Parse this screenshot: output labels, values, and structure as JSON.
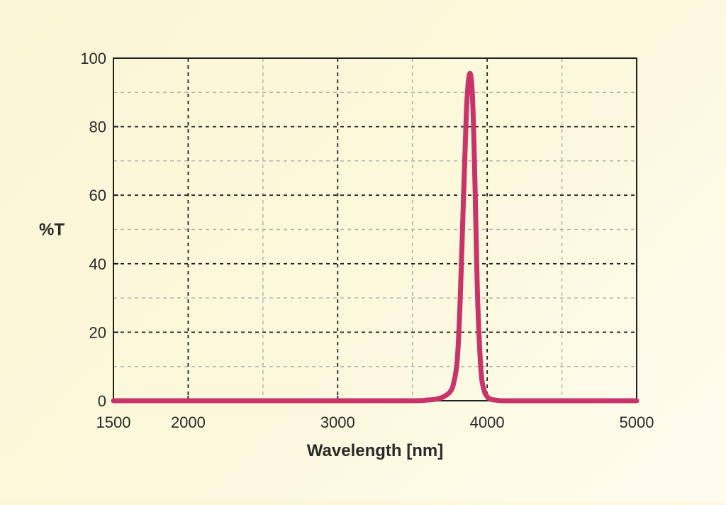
{
  "chart_data": {
    "type": "line",
    "xlabel": "Wavelength [nm]",
    "ylabel": "%T",
    "xlim": [
      1500,
      5000
    ],
    "ylim": [
      0,
      100
    ],
    "x_ticks": [
      1500,
      2000,
      3000,
      4000,
      5000
    ],
    "x_tick_labels": [
      "1500",
      "2000",
      "3000",
      "4000",
      "5000"
    ],
    "x_minor_grid": [
      2500,
      3500,
      4500
    ],
    "y_ticks": [
      0,
      20,
      40,
      60,
      80,
      100
    ],
    "y_tick_labels": [
      "0",
      "20",
      "40",
      "60",
      "80",
      "100"
    ],
    "y_minor_grid": [
      10,
      30,
      50,
      70,
      90
    ],
    "grid": true,
    "series": [
      {
        "color": "#c8336a",
        "x": [
          1500,
          2000,
          2500,
          3000,
          3500,
          3600,
          3650,
          3700,
          3750,
          3775,
          3800,
          3820,
          3840,
          3860,
          3870,
          3880,
          3890,
          3900,
          3910,
          3920,
          3930,
          3940,
          3960,
          3980,
          4000,
          4020,
          4050,
          4100,
          4200,
          4500,
          5000
        ],
        "y": [
          0,
          0,
          0,
          0,
          0,
          0.2,
          0.4,
          1,
          2.5,
          5,
          12,
          30,
          57,
          83,
          91,
          95,
          95,
          90,
          78,
          60,
          40,
          25,
          8,
          3,
          1.2,
          0.5,
          0.2,
          0,
          0,
          0,
          0
        ]
      }
    ]
  }
}
